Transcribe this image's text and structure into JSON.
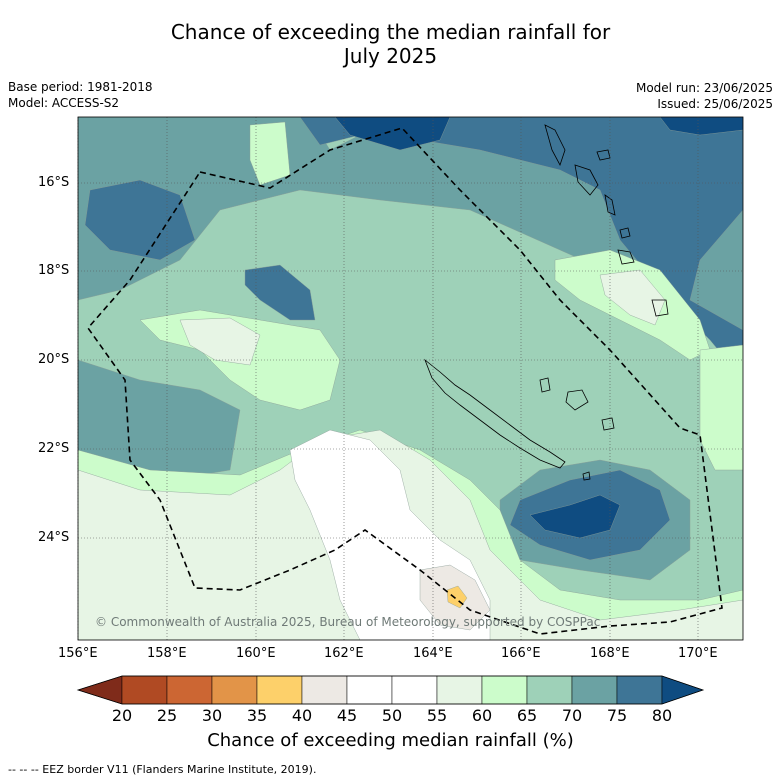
{
  "title_line1": "Chance of exceeding the median rainfall for",
  "title_line2": "July 2025",
  "base_period": "Base period: 1981-2018",
  "model": "Model: ACCESS-S2",
  "model_run": "Model run: 23/06/2025",
  "issued": "Issued: 25/06/2025",
  "copyright": "© Commonwealth of Australia 2025, Bureau of Meteorology, supported by COSPPac",
  "lat_labels": [
    "16°S",
    "18°S",
    "20°S",
    "22°S",
    "24°S"
  ],
  "lon_labels": [
    "156°E",
    "158°E",
    "160°E",
    "162°E",
    "164°E",
    "166°E",
    "168°E",
    "170°E"
  ],
  "colorbar_ticks": [
    "20",
    "25",
    "30",
    "35",
    "40",
    "45",
    "50",
    "55",
    "60",
    "65",
    "70",
    "75",
    "80"
  ],
  "colorbar_title": "Chance of exceeding median rainfall (%)",
  "footnote": "-- -- -- EEZ border V11 (Flanders Marine Institute, 2019).",
  "colors": {
    "c15_20": "#7f2b1a",
    "c20_25": "#b04a23",
    "c25_30": "#cc6633",
    "c30_35": "#e29448",
    "c35_40": "#fdd06a",
    "c40_45": "#ede9e4",
    "c45_50": "#ffffff",
    "c50_55": "#ffffff",
    "c55_60": "#e7f5e5",
    "c60_65": "#ccfccb",
    "c65_70": "#9ed1b8",
    "c70_75": "#6ba2a3",
    "c75_80": "#3e7596",
    "c80_85": "#0f4c81"
  }
}
